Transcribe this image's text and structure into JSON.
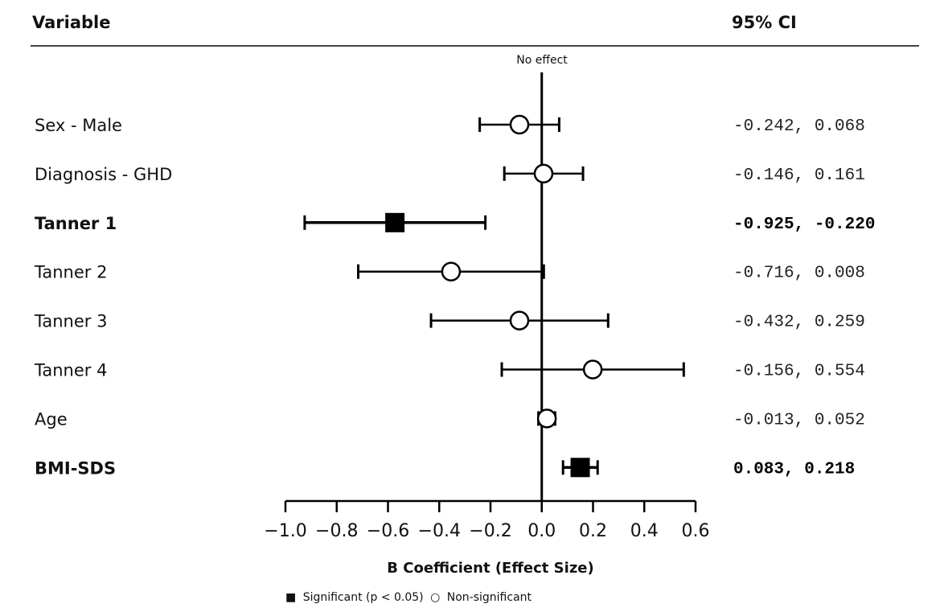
{
  "chart_data": {
    "type": "forest",
    "headers": {
      "variable": "Variable",
      "ci": "95% CI"
    },
    "reference_label": "No effect",
    "reference_value": 0,
    "xlabel": "B Coefficient (Effect Size)",
    "xlim": [
      -1.0,
      0.6
    ],
    "xticks": [
      -1.0,
      -0.8,
      -0.6,
      -0.4,
      -0.2,
      0.0,
      0.2,
      0.4,
      0.6
    ],
    "xtick_labels": [
      "−1.0",
      "−0.8",
      "−0.6",
      "−0.4",
      "−0.2",
      "0.0",
      "0.2",
      "0.4",
      "0.6"
    ],
    "legend": {
      "significant_symbol": "■",
      "significant_label": "Significant (p < 0.05)",
      "nonsignificant_symbol": "○",
      "nonsignificant_label": "Non-significant"
    },
    "rows": [
      {
        "label": "Sex - Male",
        "estimate": -0.087,
        "lower": -0.242,
        "upper": 0.068,
        "ci_text": "-0.242, 0.068",
        "significant": false
      },
      {
        "label": "Diagnosis - GHD",
        "estimate": 0.007,
        "lower": -0.146,
        "upper": 0.161,
        "ci_text": "-0.146, 0.161",
        "significant": false
      },
      {
        "label": "Tanner 1",
        "estimate": -0.573,
        "lower": -0.925,
        "upper": -0.22,
        "ci_text": "-0.925, -0.220",
        "significant": true
      },
      {
        "label": "Tanner 2",
        "estimate": -0.354,
        "lower": -0.716,
        "upper": 0.008,
        "ci_text": "-0.716, 0.008",
        "significant": false
      },
      {
        "label": "Tanner 3",
        "estimate": -0.087,
        "lower": -0.432,
        "upper": 0.259,
        "ci_text": "-0.432, 0.259",
        "significant": false
      },
      {
        "label": "Tanner 4",
        "estimate": 0.199,
        "lower": -0.156,
        "upper": 0.554,
        "ci_text": "-0.156, 0.554",
        "significant": false
      },
      {
        "label": "Age",
        "estimate": 0.02,
        "lower": -0.013,
        "upper": 0.052,
        "ci_text": "-0.013, 0.052",
        "significant": false
      },
      {
        "label": "BMI-SDS",
        "estimate": 0.15,
        "lower": 0.083,
        "upper": 0.218,
        "ci_text": "0.083, 0.218",
        "significant": true
      }
    ],
    "colors": {
      "ink": "#000000",
      "rule": "#444444",
      "marker_fill_open": "#ffffff"
    }
  }
}
